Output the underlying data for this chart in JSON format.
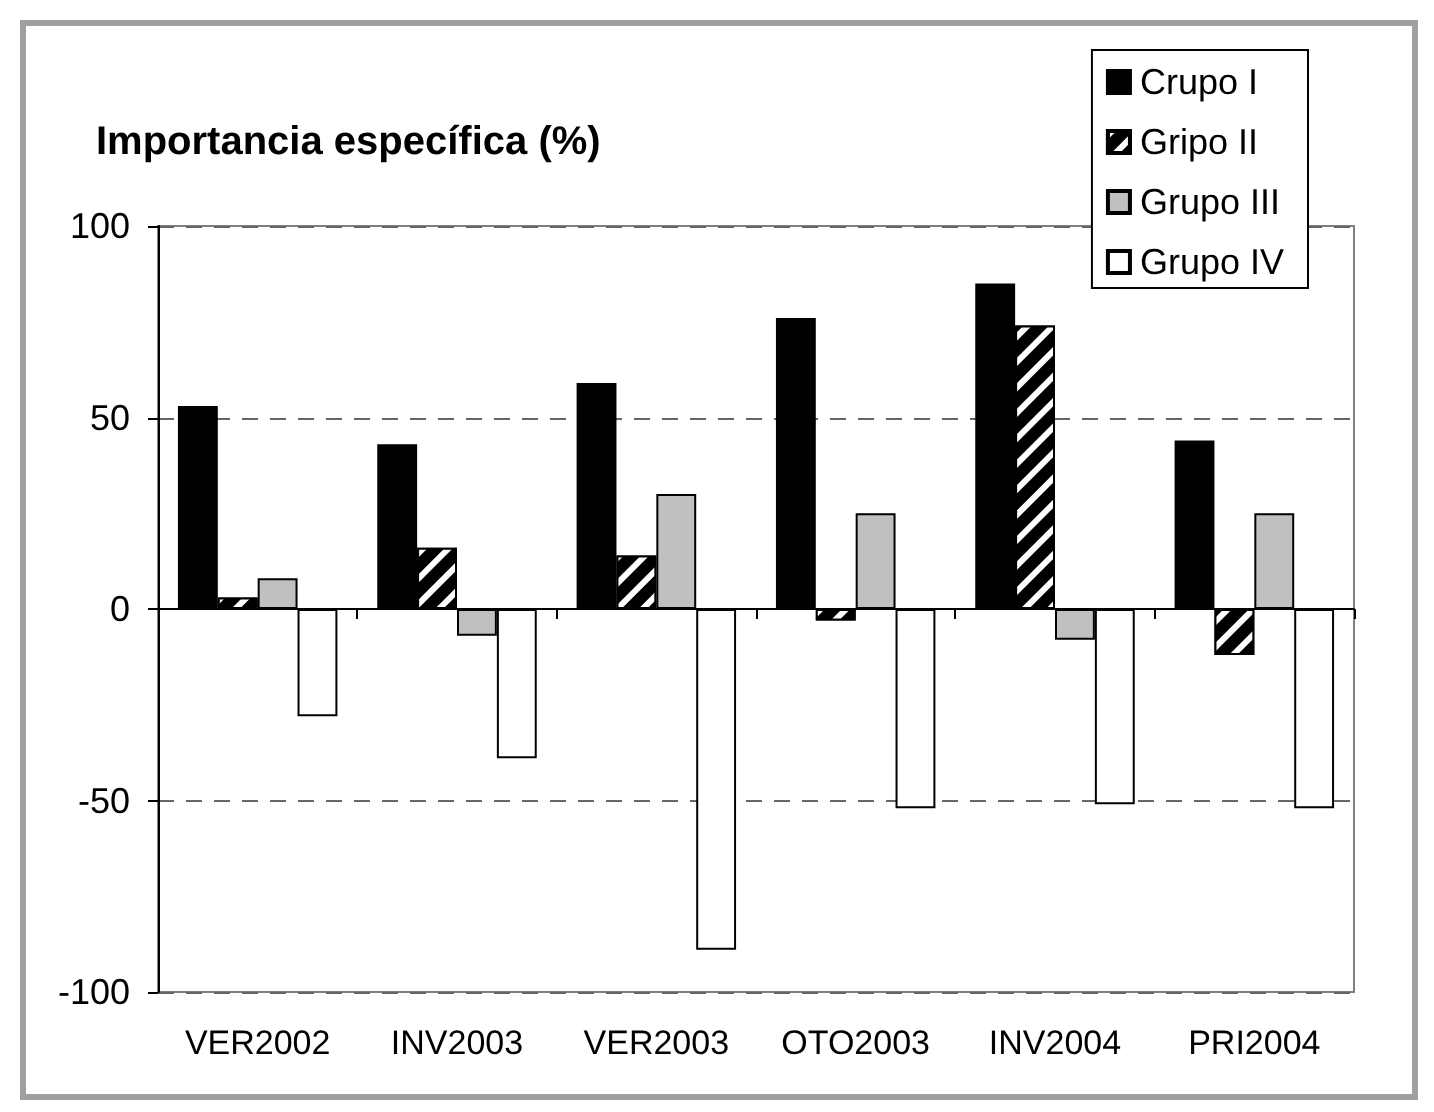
{
  "chart_data": {
    "type": "bar",
    "ylabel": "Importancia específica (%)",
    "categories": [
      "VER2002",
      "INV2003",
      "VER2003",
      "OTO2003",
      "INV2004",
      "PRI2004"
    ],
    "series": [
      {
        "name": "Crupo I",
        "color": "#000000",
        "values": [
          53,
          43,
          59,
          76,
          85,
          44
        ]
      },
      {
        "name": "Gripo II",
        "color": "#000000",
        "values": [
          3,
          16,
          14,
          -3,
          74,
          -12
        ]
      },
      {
        "name": "Grupo III",
        "color": "#c0c0c0",
        "values": [
          8,
          -7,
          30,
          25,
          -8,
          25
        ]
      },
      {
        "name": "Grupo IV",
        "color": "#ffffff",
        "values": [
          -28,
          -39,
          -89,
          -52,
          -51,
          -52
        ]
      }
    ],
    "ylim": [
      -100,
      100
    ],
    "yticks": [
      -100,
      -50,
      0,
      50,
      100
    ],
    "grid": "y",
    "legend": "top right"
  }
}
